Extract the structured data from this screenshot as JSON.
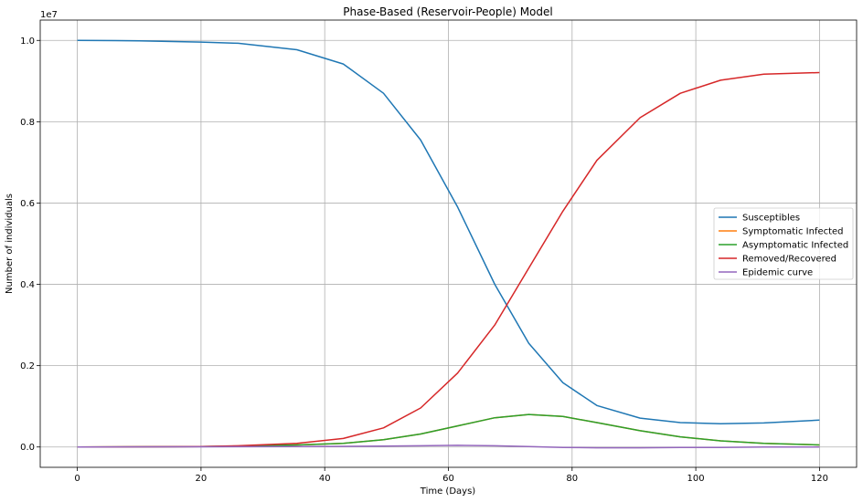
{
  "chart_data": {
    "type": "line",
    "title": "Phase-Based (Reservoir-People) Model",
    "xlabel": "Time (Days)",
    "ylabel": "Number of individuals",
    "y_offset_label": "1e7",
    "xlim": [
      -6,
      126
    ],
    "ylim": [
      -0.05,
      1.05
    ],
    "xticks": [
      0,
      20,
      40,
      60,
      80,
      100,
      120
    ],
    "xtick_labels": [
      "0",
      "20",
      "40",
      "60",
      "80",
      "100",
      "120"
    ],
    "yticks": [
      0.0,
      0.2,
      0.4,
      0.6,
      0.8,
      1.0
    ],
    "ytick_labels": [
      "0.0",
      "0.2",
      "0.4",
      "0.6",
      "0.8",
      "1.0"
    ],
    "grid": true,
    "legend_position": "center-right",
    "series": [
      {
        "name": "Susceptibles",
        "color": "#1f77b4",
        "points": [
          [
            0,
            1.0
          ],
          [
            10,
            0.999
          ],
          [
            20,
            0.996
          ],
          [
            26,
            0.993
          ],
          [
            35.5,
            0.977
          ],
          [
            43,
            0.942
          ],
          [
            49.5,
            0.87
          ],
          [
            55.5,
            0.755
          ],
          [
            61.5,
            0.59
          ],
          [
            67.5,
            0.4
          ],
          [
            73,
            0.255
          ],
          [
            78.5,
            0.158
          ],
          [
            84,
            0.102
          ],
          [
            91,
            0.071
          ],
          [
            97.5,
            0.06
          ],
          [
            104,
            0.057
          ],
          [
            111,
            0.059
          ],
          [
            120,
            0.066
          ]
        ]
      },
      {
        "name": "Symptomatic Infected",
        "color": "#ff7f0e",
        "points": [
          [
            0,
            0.0
          ],
          [
            20,
            0.001
          ],
          [
            26,
            0.002
          ],
          [
            35.5,
            0.005
          ],
          [
            43,
            0.009
          ],
          [
            49.5,
            0.018
          ],
          [
            55.5,
            0.032
          ],
          [
            61.5,
            0.052
          ],
          [
            67.5,
            0.072
          ],
          [
            73,
            0.08
          ],
          [
            78.5,
            0.075
          ],
          [
            84,
            0.06
          ],
          [
            91,
            0.04
          ],
          [
            97.5,
            0.025
          ],
          [
            104,
            0.015
          ],
          [
            111,
            0.009
          ],
          [
            120,
            0.005
          ]
        ]
      },
      {
        "name": "Asymptomatic Infected",
        "color": "#2ca02c",
        "points": [
          [
            0,
            0.0
          ],
          [
            20,
            0.001
          ],
          [
            26,
            0.002
          ],
          [
            35.5,
            0.005
          ],
          [
            43,
            0.009
          ],
          [
            49.5,
            0.018
          ],
          [
            55.5,
            0.032
          ],
          [
            61.5,
            0.052
          ],
          [
            67.5,
            0.072
          ],
          [
            73,
            0.08
          ],
          [
            78.5,
            0.075
          ],
          [
            84,
            0.06
          ],
          [
            91,
            0.04
          ],
          [
            97.5,
            0.025
          ],
          [
            104,
            0.015
          ],
          [
            111,
            0.009
          ],
          [
            120,
            0.005
          ]
        ]
      },
      {
        "name": "Removed/Recovered",
        "color": "#d62728",
        "points": [
          [
            0,
            0.0
          ],
          [
            20,
            0.001
          ],
          [
            26,
            0.003
          ],
          [
            35.5,
            0.009
          ],
          [
            43,
            0.021
          ],
          [
            49.5,
            0.047
          ],
          [
            55.5,
            0.096
          ],
          [
            61.5,
            0.182
          ],
          [
            67.5,
            0.3
          ],
          [
            73,
            0.44
          ],
          [
            78.5,
            0.58
          ],
          [
            84,
            0.705
          ],
          [
            91,
            0.81
          ],
          [
            97.5,
            0.87
          ],
          [
            104,
            0.902
          ],
          [
            111,
            0.917
          ],
          [
            120,
            0.921
          ]
        ]
      },
      {
        "name": "Epidemic curve",
        "color": "#9467bd",
        "points": [
          [
            0,
            0.0
          ],
          [
            20,
            0.0005
          ],
          [
            35.5,
            0.001
          ],
          [
            49.5,
            0.002
          ],
          [
            55.5,
            0.003
          ],
          [
            61.5,
            0.004
          ],
          [
            67.5,
            0.003
          ],
          [
            73,
            0.001
          ],
          [
            78.5,
            -0.001
          ],
          [
            84,
            -0.002
          ],
          [
            91,
            -0.002
          ],
          [
            97.5,
            -0.001
          ],
          [
            104,
            -0.001
          ],
          [
            111,
            0.0
          ],
          [
            120,
            0.0
          ]
        ]
      }
    ]
  }
}
